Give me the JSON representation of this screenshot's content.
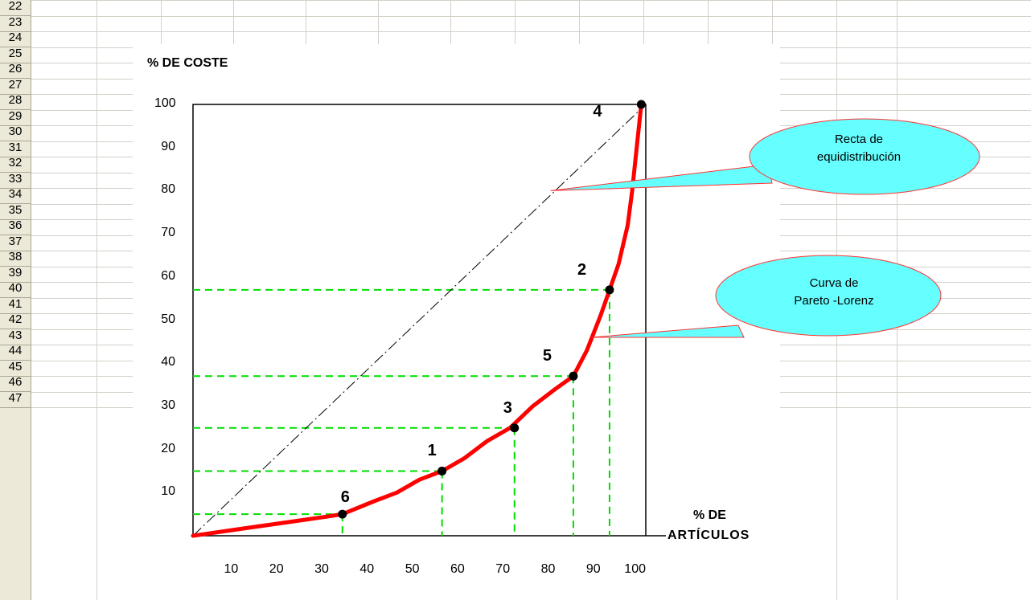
{
  "spreadsheet": {
    "row_numbers": [
      "22",
      "23",
      "24",
      "25",
      "26",
      "27",
      "28",
      "29",
      "30",
      "31",
      "32",
      "33",
      "34",
      "35",
      "36",
      "37",
      "38",
      "39",
      "40",
      "41",
      "42",
      "43",
      "44",
      "45",
      "46",
      "47"
    ]
  },
  "chart_data": {
    "type": "line",
    "ylabel": "%  DE COSTE",
    "xlabel": [
      "% DE",
      "ARTÍCULOS"
    ],
    "xlim": [
      0,
      100
    ],
    "ylim": [
      0,
      100
    ],
    "x_ticks": [
      "10",
      "20",
      "30",
      "40",
      "50",
      "60",
      "70",
      "80",
      "90",
      "100"
    ],
    "y_ticks": [
      "10",
      "20",
      "30",
      "40",
      "50",
      "60",
      "70",
      "80",
      "90",
      "100"
    ],
    "series": [
      {
        "name": "Curva de Pareto -Lorenz",
        "color": "#ff0000",
        "x": [
          0,
          10,
          20,
          30,
          33,
          40,
          45,
          50,
          55,
          60,
          65,
          70,
          75,
          80,
          84,
          87,
          90,
          92,
          94,
          96,
          97,
          98,
          99
        ],
        "y": [
          0,
          1.5,
          3,
          4.5,
          5,
          8,
          10,
          13,
          15,
          18,
          22,
          25,
          30,
          34,
          37,
          43,
          51,
          57,
          63,
          72,
          80,
          90,
          100
        ]
      },
      {
        "name": "Recta de equidistribución",
        "color": "#000000",
        "x": [
          0,
          100
        ],
        "y": [
          0,
          100
        ]
      }
    ],
    "points": [
      {
        "label": "6",
        "x": 33,
        "y": 5
      },
      {
        "label": "1",
        "x": 55,
        "y": 15
      },
      {
        "label": "3",
        "x": 71,
        "y": 25
      },
      {
        "label": "5",
        "x": 84,
        "y": 37
      },
      {
        "label": "2",
        "x": 92,
        "y": 57
      },
      {
        "label": "4",
        "x": 99,
        "y": 100
      }
    ],
    "guide_color": "#00dd00",
    "annotations": [
      {
        "text": [
          "Recta de",
          "equidistribución"
        ],
        "fill": "#66ffff",
        "target": {
          "x": 79,
          "y": 80
        }
      },
      {
        "text": [
          "Curva de",
          "Pareto -Lorenz"
        ],
        "fill": "#66ffff",
        "target": {
          "x": 88,
          "y": 46
        }
      }
    ]
  }
}
